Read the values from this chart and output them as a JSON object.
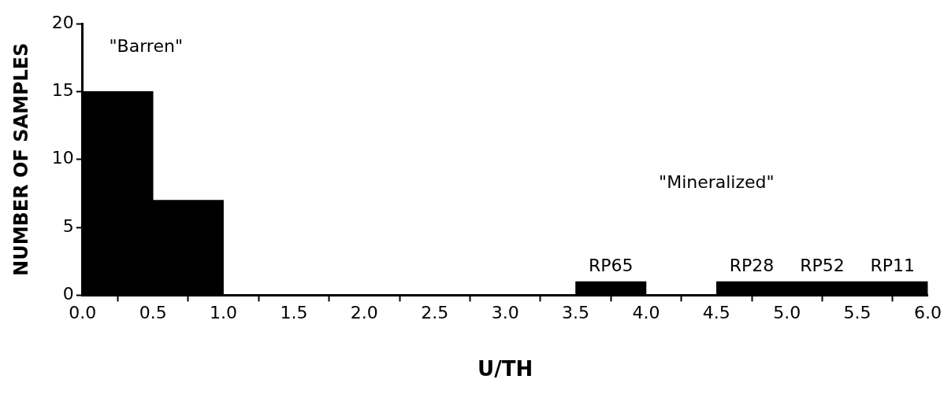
{
  "chart_data": {
    "type": "histogram",
    "xlabel": "U/TH",
    "ylabel": "NUMBER OF SAMPLES",
    "bins": [
      0,
      0.5,
      1,
      1.5,
      2,
      2.5,
      3,
      3.5,
      4,
      4.5,
      5,
      5.5,
      6
    ],
    "values": [
      15,
      7,
      0,
      0,
      0,
      0,
      0,
      1,
      0,
      1,
      1,
      1
    ],
    "color": "#000000",
    "xlim": [
      0,
      6
    ],
    "xticks": [
      {
        "value": 0,
        "label": "0.0"
      },
      {
        "value": 0.5,
        "label": "0.5"
      },
      {
        "value": 1,
        "label": "1.0"
      },
      {
        "value": 1.5,
        "label": "1.5"
      },
      {
        "value": 2,
        "label": "2.0"
      },
      {
        "value": 2.5,
        "label": "2.5"
      },
      {
        "value": 3,
        "label": "3.0"
      },
      {
        "value": 3.5,
        "label": "3.5"
      },
      {
        "value": 4,
        "label": "4.0"
      },
      {
        "value": 4.5,
        "label": "4.5"
      },
      {
        "value": 5,
        "label": "5.0"
      },
      {
        "value": 5.5,
        "label": "5.5"
      },
      {
        "value": 6,
        "label": "6.0"
      }
    ],
    "ylim": [
      0,
      20
    ],
    "yticks": [
      0,
      5,
      10,
      15,
      20
    ],
    "annotations": [
      "\"Barren\"",
      "\"Mineralized\"",
      {
        "text": "RP65",
        "x": 3.75,
        "y": 1
      },
      {
        "text": "RP28",
        "x": 4.75,
        "y": 1
      },
      {
        "text": "RP52",
        "x": 5.25,
        "y": 1
      },
      {
        "text": "RP11",
        "x": 5.75,
        "y": 1
      }
    ]
  }
}
